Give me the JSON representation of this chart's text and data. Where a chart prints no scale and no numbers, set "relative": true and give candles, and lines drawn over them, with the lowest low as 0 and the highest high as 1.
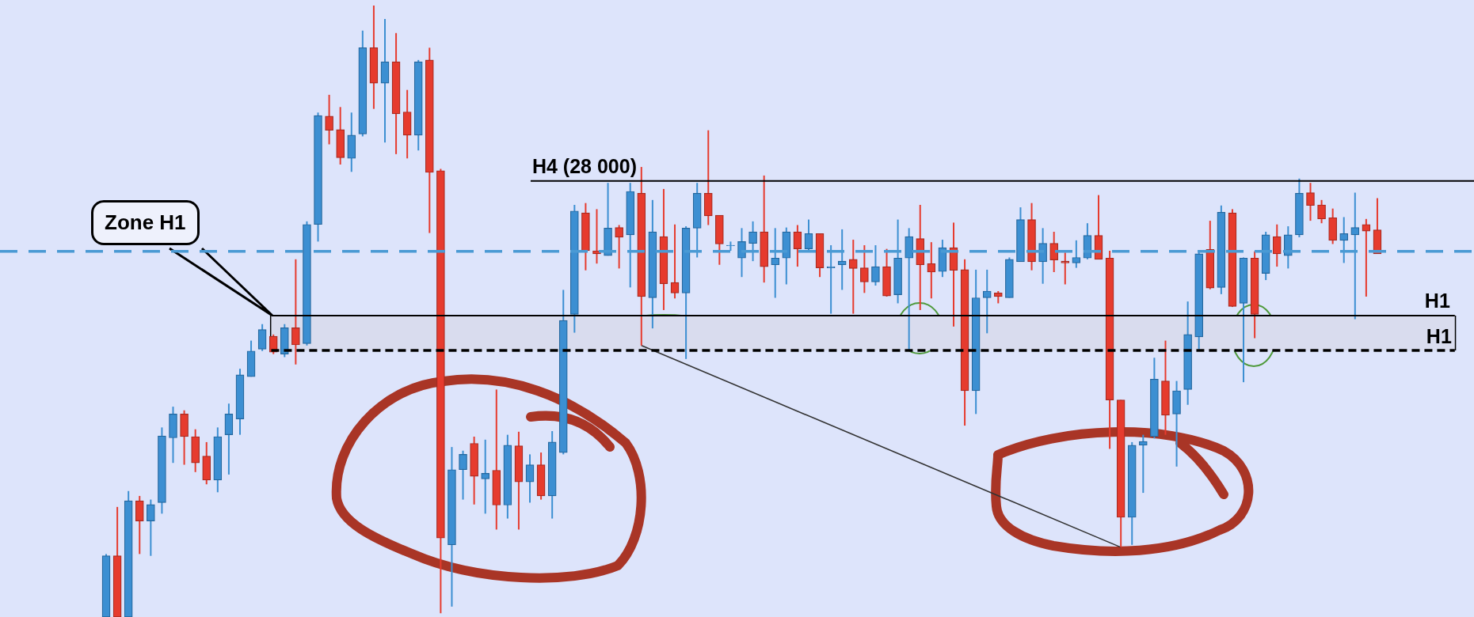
{
  "chart_data": {
    "type": "candlestick",
    "relative": true,
    "legend": false,
    "categories": [
      null,
      null,
      null,
      null,
      null,
      null,
      null,
      null,
      null,
      null,
      null,
      null,
      null,
      null,
      null,
      null,
      null,
      null,
      null,
      null,
      null,
      null,
      null,
      null,
      null,
      null,
      null,
      null,
      null,
      null,
      null,
      null,
      null,
      null,
      null,
      null,
      null,
      null,
      null,
      null,
      null,
      null,
      null,
      null,
      null,
      null,
      null,
      null,
      null,
      null,
      null,
      null,
      null,
      null,
      null,
      null,
      null,
      null,
      null,
      null,
      null,
      null,
      null,
      null,
      null,
      null,
      null,
      null,
      null,
      null,
      null,
      null,
      null,
      null,
      null,
      null,
      null,
      null,
      null,
      null,
      null,
      null,
      null,
      null,
      null,
      null,
      null,
      null,
      null,
      null,
      null,
      null,
      null,
      null,
      null,
      null,
      null,
      null,
      null,
      null,
      null,
      null,
      null,
      null,
      null,
      null,
      null,
      null,
      null,
      null,
      null,
      null,
      null,
      null,
      null
    ],
    "ohlc": [
      [
        0,
        0.103,
        0,
        0.1
      ],
      [
        0.1,
        0.18,
        0,
        0
      ],
      [
        0,
        0.206,
        0,
        0.19
      ],
      [
        0.19,
        0.198,
        0.103,
        0.157
      ],
      [
        0.157,
        0.192,
        0.1,
        0.184
      ],
      [
        0.187,
        0.31,
        0.169,
        0.296
      ],
      [
        0.293,
        0.344,
        0.252,
        0.332
      ],
      [
        0.332,
        0.338,
        0.249,
        0.295
      ],
      [
        0.295,
        0.307,
        0.237,
        0.252
      ],
      [
        0.263,
        0.286,
        0.217,
        0.224
      ],
      [
        0.224,
        0.31,
        0.204,
        0.295
      ],
      [
        0.298,
        0.349,
        0.233,
        0.332
      ],
      [
        0.324,
        0.406,
        0.298,
        0.396
      ],
      [
        0.393,
        0.452,
        0.393,
        0.435
      ],
      [
        0.438,
        0.479,
        0.435,
        0.47
      ],
      [
        0.459,
        0.462,
        0.43,
        0.433
      ],
      [
        0.43,
        0.479,
        0.425,
        0.473
      ],
      [
        0.473,
        0.585,
        0.413,
        0.445
      ],
      [
        0.447,
        0.647,
        0.444,
        0.642
      ],
      [
        0.642,
        0.825,
        0.614,
        0.82
      ],
      [
        0.819,
        0.854,
        0.773,
        0.796
      ],
      [
        0.797,
        0.834,
        0.74,
        0.751
      ],
      [
        0.75,
        0.825,
        0.728,
        0.788
      ],
      [
        0.79,
        0.959,
        0.786,
        0.931
      ],
      [
        0.931,
        1,
        0.831,
        0.873
      ],
      [
        0.873,
        0.978,
        0.776,
        0.908
      ],
      [
        0.908,
        0.955,
        0.757,
        0.823
      ],
      [
        0.826,
        0.862,
        0.75,
        0.788
      ],
      [
        0.788,
        0.911,
        0.763,
        0.908
      ],
      [
        0.911,
        0.931,
        0.628,
        0.727
      ],
      [
        0.73,
        0.733,
        0.006,
        0.129
      ],
      [
        0.118,
        0.278,
        0.017,
        0.241
      ],
      [
        0.241,
        0.272,
        0.192,
        0.266
      ],
      [
        0.284,
        0.295,
        0.184,
        0.23
      ],
      [
        0.226,
        0.29,
        0.169,
        0.235
      ],
      [
        0.24,
        0.372,
        0.143,
        0.183
      ],
      [
        0.183,
        0.298,
        0.161,
        0.281
      ],
      [
        0.28,
        0.303,
        0.143,
        0.221
      ],
      [
        0.221,
        0.266,
        0.187,
        0.249
      ],
      [
        0.249,
        0.269,
        0.192,
        0.198
      ],
      [
        0.198,
        0.304,
        0.161,
        0.286
      ],
      [
        0.269,
        0.535,
        0.266,
        0.485
      ],
      [
        0.495,
        0.674,
        0.465,
        0.664
      ],
      [
        0.661,
        0.677,
        0.567,
        0.599
      ],
      [
        0.599,
        0.667,
        0.578,
        0.594
      ],
      [
        0.591,
        0.71,
        0.591,
        0.636
      ],
      [
        0.637,
        0.641,
        0.57,
        0.621
      ],
      [
        0.625,
        0.71,
        0.539,
        0.696
      ],
      [
        0.693,
        0.736,
        0.444,
        0.524
      ],
      [
        0.522,
        0.682,
        0.472,
        0.63
      ],
      [
        0.622,
        0.7,
        0.502,
        0.545
      ],
      [
        0.547,
        0.642,
        0.521,
        0.53
      ],
      [
        0.53,
        0.639,
        0.422,
        0.636
      ],
      [
        0.636,
        0.71,
        0.588,
        0.693
      ],
      [
        0.693,
        0.796,
        0.641,
        0.656
      ],
      [
        0.657,
        0.657,
        0.576,
        0.61
      ],
      [
        0.607,
        0.614,
        0.599,
        0.608
      ],
      [
        0.587,
        0.636,
        0.556,
        0.614
      ],
      [
        0.611,
        0.647,
        0.582,
        0.63
      ],
      [
        0.63,
        0.722,
        0.547,
        0.573
      ],
      [
        0.576,
        0.636,
        0.522,
        0.587
      ],
      [
        0.587,
        0.637,
        0.544,
        0.63
      ],
      [
        0.63,
        0.641,
        0.573,
        0.602
      ],
      [
        0.602,
        0.65,
        0.599,
        0.627
      ],
      [
        0.627,
        0.627,
        0.556,
        0.571
      ],
      [
        0.571,
        0.608,
        0.496,
        0.573
      ],
      [
        0.576,
        0.634,
        0.535,
        0.582
      ],
      [
        0.585,
        0.617,
        0.496,
        0.57
      ],
      [
        0.571,
        0.608,
        0.53,
        0.548
      ],
      [
        0.548,
        0.608,
        0.542,
        0.573
      ],
      [
        0.573,
        0.602,
        0.524,
        0.525
      ],
      [
        0.527,
        0.65,
        0.513,
        0.587
      ],
      [
        0.587,
        0.636,
        0.436,
        0.622
      ],
      [
        0.619,
        0.674,
        0.502,
        0.576
      ],
      [
        0.578,
        0.613,
        0.521,
        0.564
      ],
      [
        0.565,
        0.617,
        0.556,
        0.604
      ],
      [
        0.604,
        0.645,
        0.475,
        0.567
      ],
      [
        0.568,
        0.585,
        0.313,
        0.37
      ],
      [
        0.37,
        0.568,
        0.332,
        0.522
      ],
      [
        0.522,
        0.568,
        0.464,
        0.533
      ],
      [
        0.53,
        0.533,
        0.513,
        0.524
      ],
      [
        0.522,
        0.588,
        0.522,
        0.585
      ],
      [
        0.581,
        0.67,
        0.581,
        0.65
      ],
      [
        0.65,
        0.677,
        0.567,
        0.581
      ],
      [
        0.581,
        0.636,
        0.545,
        0.611
      ],
      [
        0.611,
        0.63,
        0.564,
        0.584
      ],
      [
        0.582,
        0.596,
        0.544,
        0.579
      ],
      [
        0.579,
        0.616,
        0.571,
        0.588
      ],
      [
        0.587,
        0.644,
        0.585,
        0.624
      ],
      [
        0.624,
        0.69,
        0.585,
        0.585
      ],
      [
        0.587,
        0.599,
        0.275,
        0.355
      ],
      [
        0.355,
        0.355,
        0.114,
        0.163
      ],
      [
        0.163,
        0.286,
        0.118,
        0.281
      ],
      [
        0.281,
        0.298,
        0.203,
        0.287
      ],
      [
        0.295,
        0.424,
        0.292,
        0.389
      ],
      [
        0.386,
        0.452,
        0.298,
        0.33
      ],
      [
        0.332,
        0.386,
        0.246,
        0.37
      ],
      [
        0.372,
        0.516,
        0.347,
        0.462
      ],
      [
        0.458,
        0.599,
        0.438,
        0.594
      ],
      [
        0.601,
        0.648,
        0.536,
        0.538
      ],
      [
        0.539,
        0.673,
        0.528,
        0.662
      ],
      [
        0.661,
        0.667,
        0.507,
        0.508
      ],
      [
        0.513,
        0.588,
        0.384,
        0.587
      ],
      [
        0.587,
        0.598,
        0.456,
        0.495
      ],
      [
        0.562,
        0.63,
        0.551,
        0.625
      ],
      [
        0.622,
        0.642,
        0.573,
        0.594
      ],
      [
        0.591,
        0.639,
        0.57,
        0.625
      ],
      [
        0.625,
        0.717,
        0.621,
        0.693
      ],
      [
        0.694,
        0.71,
        0.648,
        0.673
      ],
      [
        0.674,
        0.682,
        0.644,
        0.651
      ],
      [
        0.653,
        0.668,
        0.61,
        0.616
      ],
      [
        0.616,
        0.654,
        0.579,
        0.627
      ],
      [
        0.625,
        0.694,
        0.487,
        0.637
      ],
      [
        0.642,
        0.651,
        0.524,
        0.631
      ],
      [
        0.633,
        0.685,
        0.594,
        0.594
      ]
    ],
    "series": [
      {
        "type": "line",
        "color": "#333333",
        "values": [
          null,
          null,
          null,
          null,
          null,
          null,
          null,
          null,
          null,
          null,
          null,
          null,
          null,
          null,
          null,
          null,
          null,
          null,
          null,
          null,
          null,
          null,
          null,
          null,
          null,
          null,
          null,
          null,
          null,
          null,
          null,
          null,
          null,
          null,
          null,
          null,
          null,
          null,
          null,
          null,
          null,
          null,
          null,
          null,
          null,
          null,
          null,
          null,
          0.444,
          null,
          null,
          null,
          null,
          null,
          null,
          null,
          null,
          null,
          null,
          null,
          null,
          null,
          null,
          null,
          null,
          null,
          null,
          null,
          null,
          null,
          null,
          null,
          null,
          null,
          null,
          null,
          null,
          null,
          null,
          null,
          null,
          null,
          null,
          null,
          null,
          null,
          null,
          null,
          null,
          null,
          null,
          0.114,
          null,
          null,
          null,
          null,
          null,
          null,
          null,
          null,
          null,
          null,
          null,
          null,
          null,
          null,
          null,
          null,
          null,
          null,
          null,
          null,
          null,
          null,
          null
        ]
      }
    ],
    "ref_lines": [
      {
        "axis": "y",
        "value": 0.713,
        "label": "H4 (28 000)",
        "color": "#000000",
        "line_style": "solid"
      },
      {
        "axis": "y",
        "value": 0.598,
        "color": "#4a9ad4",
        "line_style": "dashed"
      },
      {
        "axis": "y",
        "value": 0.493,
        "label": "H1",
        "color": "#000000",
        "line_style": "solid"
      },
      {
        "axis": "y",
        "value": 0.436,
        "color": "#000000",
        "line_style": "dashed"
      }
    ],
    "bands": [
      {
        "axis": "y",
        "from": 0.436,
        "to": 0.493,
        "label": "H1",
        "color": "#d9dcee"
      }
    ],
    "annotations": [
      "Zone H1"
    ]
  }
}
